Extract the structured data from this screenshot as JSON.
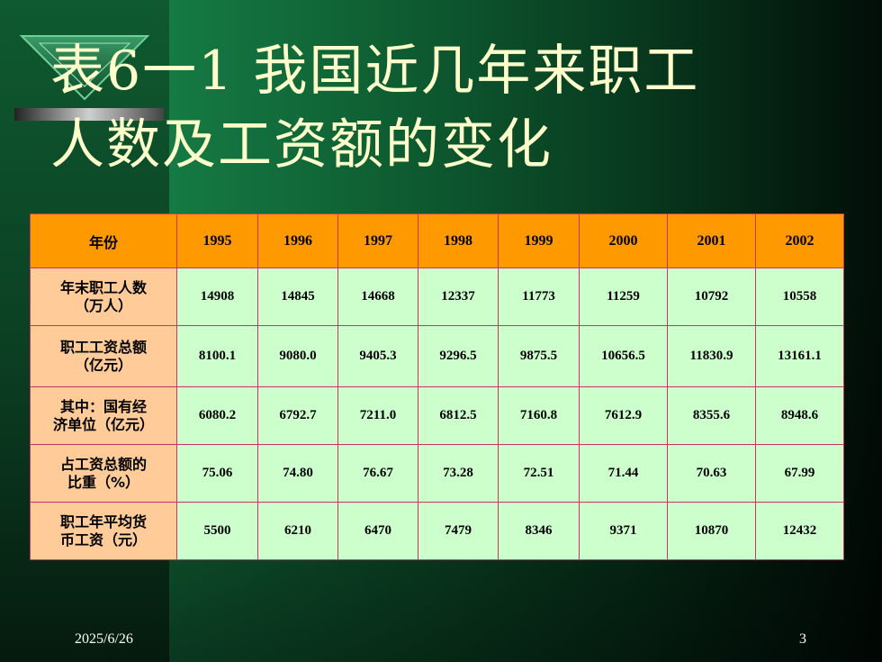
{
  "slide": {
    "title_line1": "表6一1 我国近几年来职工",
    "title_line2": "人数及工资额的变化",
    "date": "2025/6/26",
    "page_number": "3"
  },
  "colors": {
    "header_bg": "#ff9900",
    "label_bg": "#ffcc99",
    "cell_bg": "#ccffcc",
    "border": "#cc3366",
    "title_text": "#ffffcc"
  },
  "table": {
    "header_label": "年份",
    "years": [
      "1995",
      "1996",
      "1997",
      "1998",
      "1999",
      "2000",
      "2001",
      "2002"
    ],
    "rows": [
      {
        "label": "年末职工人数\n（万人）",
        "values": [
          "14908",
          "14845",
          "14668",
          "12337",
          "11773",
          "11259",
          "10792",
          "10558"
        ]
      },
      {
        "label": "职工工资总额\n（亿元）",
        "values": [
          "8100.1",
          "9080.0",
          "9405.3",
          "9296.5",
          "9875.5",
          "10656.5",
          "11830.9",
          "13161.1"
        ]
      },
      {
        "label": "其中：国有经\n济单位（亿元）",
        "values": [
          "6080.2",
          "6792.7",
          "7211.0",
          "6812.5",
          "7160.8",
          "7612.9",
          "8355.6",
          "8948.6"
        ]
      },
      {
        "label": "占工资总额的\n比重（%）",
        "values": [
          "75.06",
          "74.80",
          "76.67",
          "73.28",
          "72.51",
          "71.44",
          "70.63",
          "67.99"
        ]
      },
      {
        "label": "职工年平均货\n币工资（元）",
        "values": [
          "5500",
          "6210",
          "6470",
          "7479",
          "8346",
          "9371",
          "10870",
          "12432"
        ]
      }
    ]
  }
}
